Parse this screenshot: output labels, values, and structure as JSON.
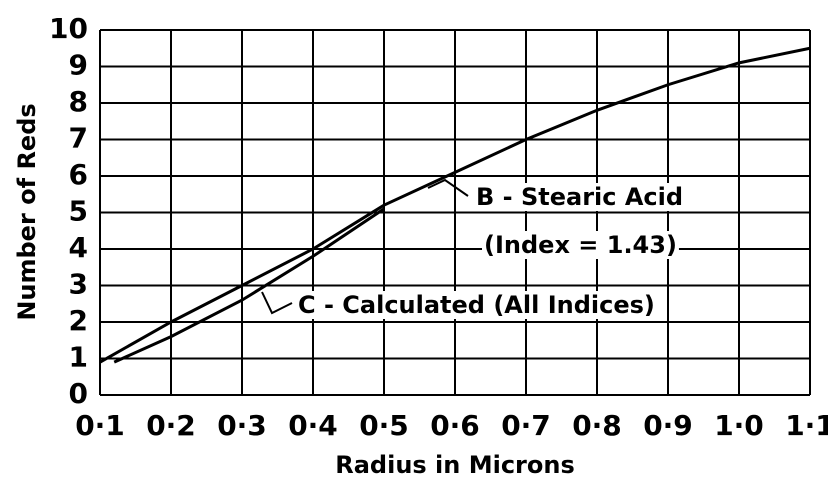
{
  "chart_data": {
    "type": "line",
    "x_label": "Radius in Microns",
    "y_label": "Number of Reds",
    "annotation": "(Index = 1.43)",
    "series": [
      {
        "name": "B - Stearic Acid",
        "color": "#000000",
        "x": [
          0.1,
          0.2,
          0.3,
          0.4,
          0.5,
          0.6,
          0.7,
          0.8,
          0.9,
          1.0,
          1.1
        ],
        "values": [
          0.9,
          2.0,
          3.0,
          4.0,
          5.2,
          6.1,
          7.0,
          7.8,
          8.5,
          9.1,
          9.5
        ]
      },
      {
        "name": "C - Calculated (All Indices)",
        "color": "#000000",
        "x": [
          0.12,
          0.2,
          0.3,
          0.4,
          0.5
        ],
        "values": [
          0.9,
          1.6,
          2.6,
          3.8,
          5.1
        ]
      }
    ],
    "xlim": [
      0.1,
      1.1
    ],
    "xticks": [
      {
        "value": 0.1,
        "label": "0·1"
      },
      {
        "value": 0.2,
        "label": "0·2"
      },
      {
        "value": 0.3,
        "label": "0·3"
      },
      {
        "value": 0.4,
        "label": "0·4"
      },
      {
        "value": 0.5,
        "label": "0·5"
      },
      {
        "value": 0.6,
        "label": "0·6"
      },
      {
        "value": 0.7,
        "label": "0·7"
      },
      {
        "value": 0.8,
        "label": "0·8"
      },
      {
        "value": 0.9,
        "label": "0·9"
      },
      {
        "value": 1.0,
        "label": "1·0"
      },
      {
        "value": 1.1,
        "label": "1·1"
      }
    ],
    "ylim": [
      0,
      10
    ],
    "yticks": [
      0,
      1,
      2,
      3,
      4,
      5,
      6,
      7,
      8,
      9,
      10
    ],
    "grid": true
  }
}
